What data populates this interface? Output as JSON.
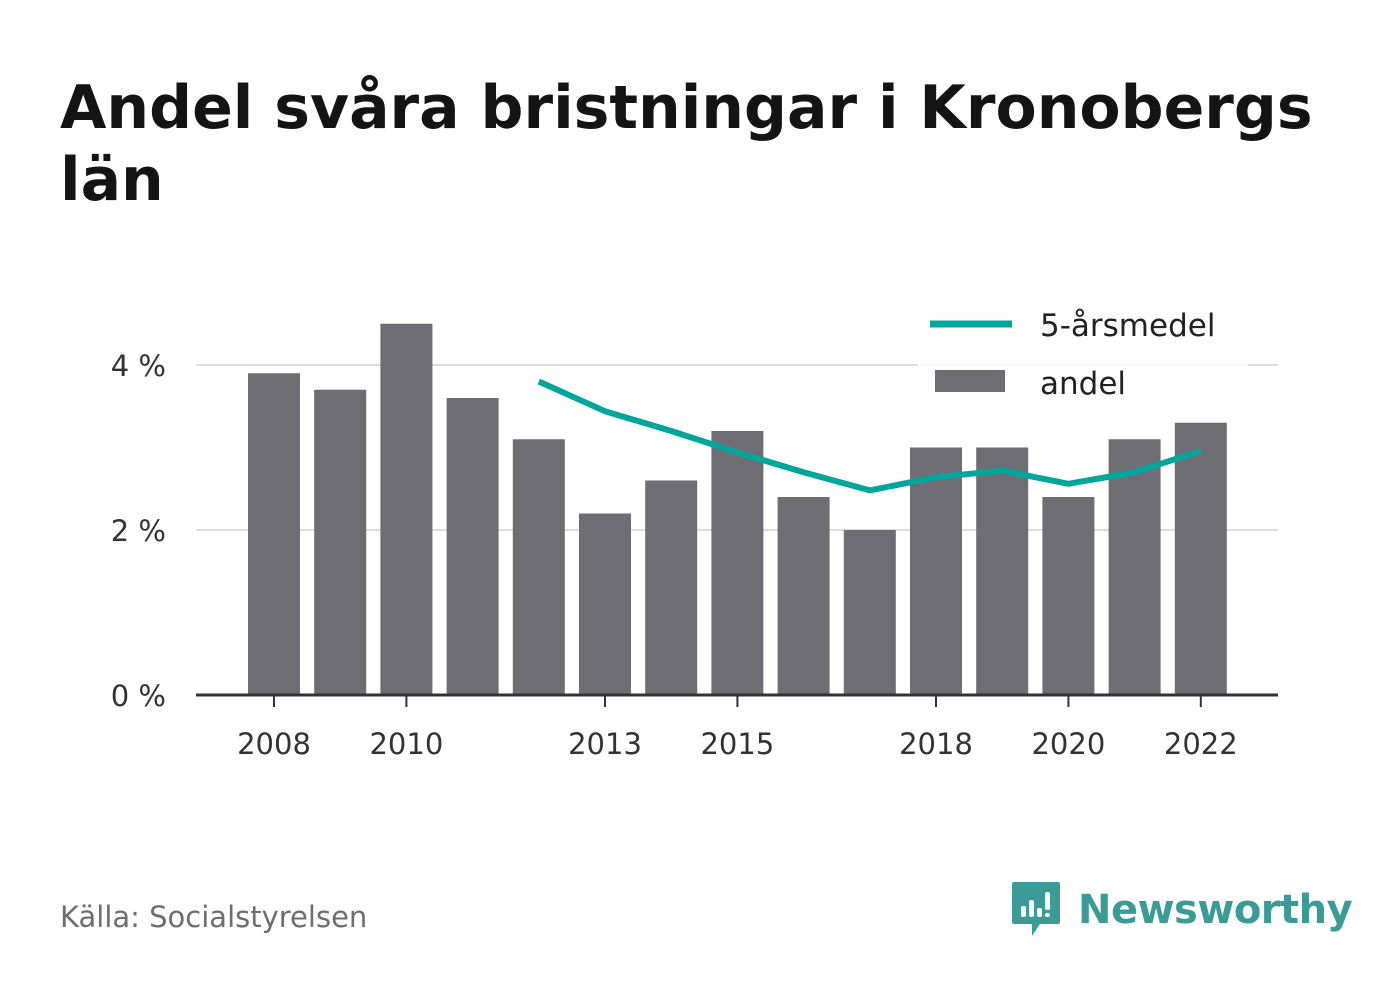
{
  "title": "Andel svåra bristningar i Kronobergs län",
  "source": "Källa: Socialstyrelsen",
  "brand": {
    "name": "Newsworthy",
    "icon": "bar-chart-speech-bubble-icon",
    "color": "#3b9c97"
  },
  "colors": {
    "bar": "#6e6d73",
    "line": "#00a69c",
    "grid": "#dcdcdc",
    "axis": "#333333",
    "text": "#333333"
  },
  "chart_data": {
    "type": "bar",
    "title": "Andel svåra bristningar i Kronobergs län",
    "xlabel": "",
    "ylabel": "",
    "ylim": [
      0,
      4.5
    ],
    "yticks": [
      0,
      2,
      4
    ],
    "ytick_labels": [
      "0 %",
      "2 %",
      "4 %"
    ],
    "x": [
      2008,
      2009,
      2010,
      2011,
      2012,
      2013,
      2014,
      2015,
      2016,
      2017,
      2018,
      2019,
      2020,
      2021,
      2022
    ],
    "xtick_labels": [
      "2008",
      "2010",
      "2013",
      "2015",
      "2018",
      "2020",
      "2022"
    ],
    "grid": "horizontal",
    "legend_position": "top-right",
    "series": [
      {
        "name": "andel",
        "type": "bar",
        "values": [
          3.9,
          3.7,
          4.5,
          3.6,
          3.1,
          2.2,
          2.6,
          3.2,
          2.4,
          2.0,
          3.0,
          3.0,
          2.4,
          3.1,
          3.3
        ]
      },
      {
        "name": "5-årsmedel",
        "type": "line",
        "values": [
          null,
          null,
          null,
          null,
          3.8,
          3.44,
          3.2,
          2.94,
          2.7,
          2.48,
          2.64,
          2.72,
          2.56,
          2.7,
          2.96
        ]
      }
    ]
  }
}
